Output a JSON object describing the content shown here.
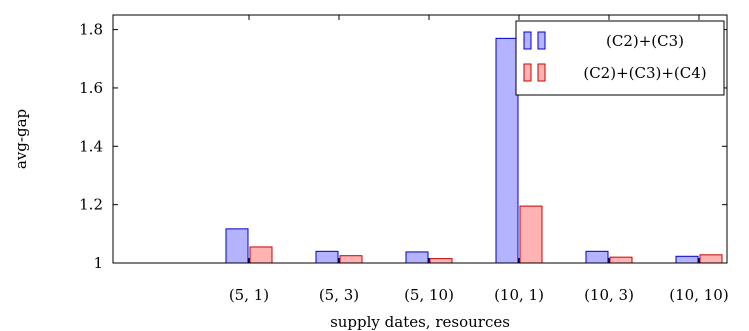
{
  "chart_data": {
    "type": "bar",
    "categories": [
      "(5, 1)",
      "(5, 3)",
      "(5, 10)",
      "(10, 1)",
      "(10, 3)",
      "(10, 10)"
    ],
    "series": [
      {
        "name": "(C2)+(C3)",
        "values": [
          1.117,
          1.04,
          1.038,
          1.77,
          1.04,
          1.023
        ],
        "fill": "#b3b3ff",
        "stroke": "#0000cc"
      },
      {
        "name": "(C2)+(C3)+(C4)",
        "values": [
          1.055,
          1.025,
          1.015,
          1.195,
          1.02,
          1.028
        ],
        "fill": "#ffb3b3",
        "stroke": "#cc0000"
      }
    ],
    "xlabel": "supply dates, resources",
    "ylabel": "avg-gap",
    "ylim": [
      1,
      1.85
    ],
    "yticks": [
      "1",
      "1.2",
      "1.4",
      "1.6",
      "1.8"
    ],
    "grid": false,
    "legend_position": "top-right"
  }
}
